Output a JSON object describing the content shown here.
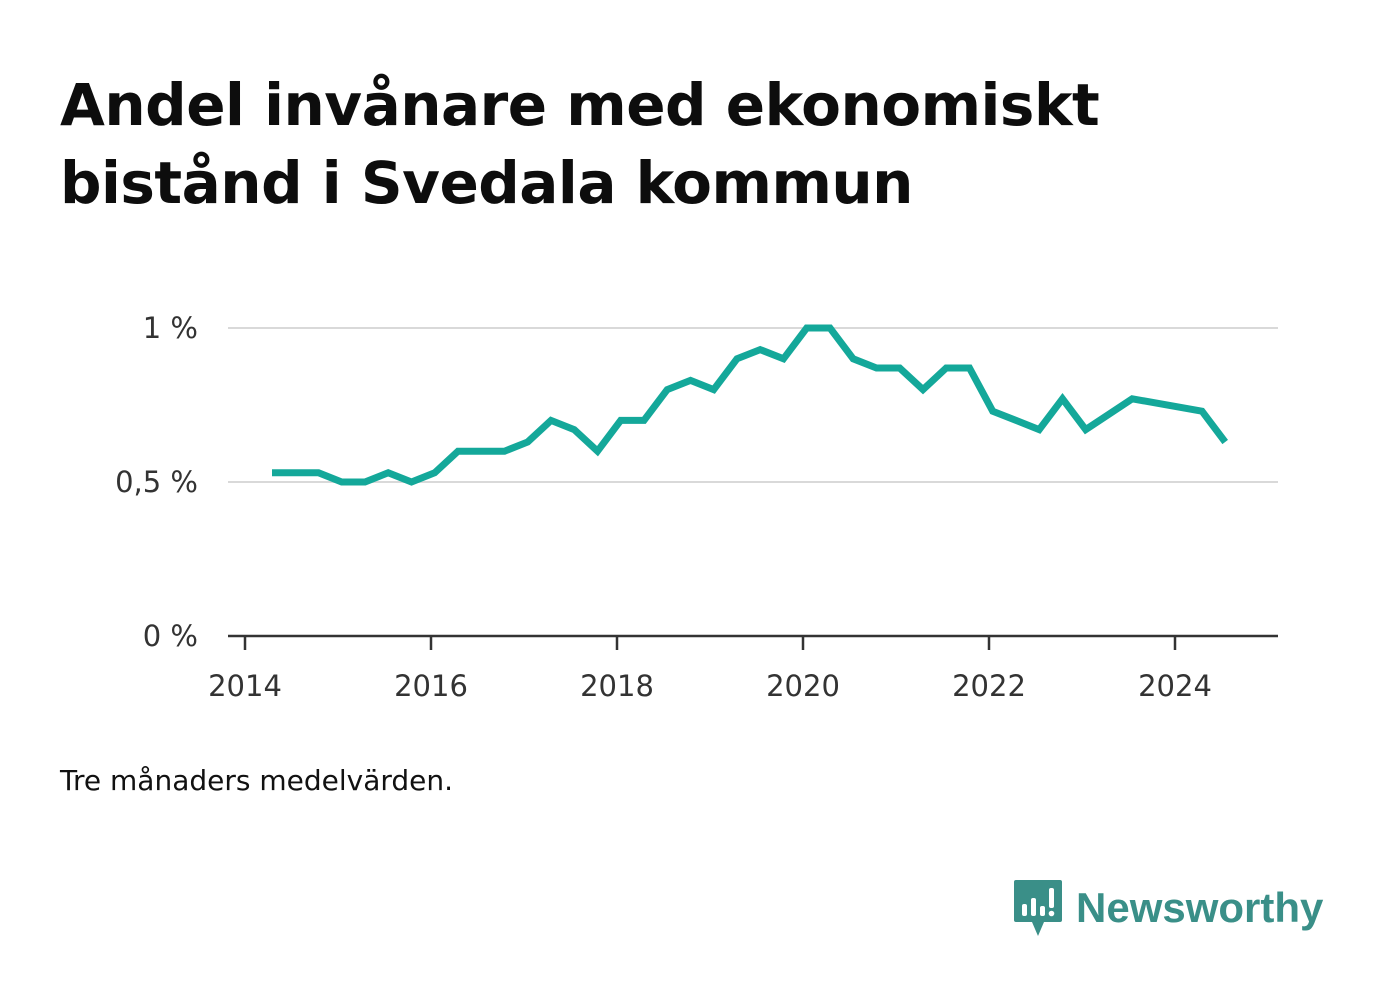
{
  "chart_data": {
    "type": "line",
    "title": "Andel invånare med ekonomiskt bistånd i Svedala kommun",
    "subtitle": "",
    "xlabel": "",
    "ylabel": "",
    "note": "Tre månaders medelvärden.",
    "x_ticks": [
      "2014",
      "2016",
      "2018",
      "2020",
      "2022",
      "2024"
    ],
    "y_ticks": [
      {
        "value": 0,
        "label": "0 %"
      },
      {
        "value": 0.5,
        "label": "0,5 %"
      },
      {
        "value": 1,
        "label": "1 %"
      }
    ],
    "xlim": [
      2014,
      2025.1
    ],
    "ylim": [
      0,
      1
    ],
    "grid": true,
    "line_color": "#14a89a",
    "series": [
      {
        "x": [
          2014.29,
          2014.54,
          2014.79,
          2015.04,
          2015.29,
          2015.54,
          2015.79,
          2016.04,
          2016.29,
          2016.54,
          2016.79,
          2017.04,
          2017.29,
          2017.54,
          2017.79,
          2018.04,
          2018.29,
          2018.54,
          2018.79,
          2019.04,
          2019.29,
          2019.54,
          2019.79,
          2020.04,
          2020.29,
          2020.54,
          2020.79,
          2021.04,
          2021.29,
          2021.54,
          2021.79,
          2022.04,
          2022.29,
          2022.54,
          2022.79,
          2023.04,
          2023.29,
          2023.54,
          2024.29,
          2024.54
        ],
        "values": [
          0.53,
          0.53,
          0.53,
          0.5,
          0.5,
          0.53,
          0.5,
          0.53,
          0.6,
          0.6,
          0.6,
          0.63,
          0.7,
          0.67,
          0.6,
          0.7,
          0.7,
          0.8,
          0.83,
          0.8,
          0.9,
          0.93,
          0.9,
          1.0,
          1.0,
          0.9,
          0.87,
          0.87,
          0.8,
          0.87,
          0.87,
          0.73,
          0.7,
          0.67,
          0.77,
          0.67,
          0.72,
          0.77,
          0.73,
          0.63
        ]
      }
    ]
  },
  "brand": {
    "name": "Newsworthy",
    "icon": "newsworthy-logo-icon",
    "color": "#3a8f88"
  }
}
